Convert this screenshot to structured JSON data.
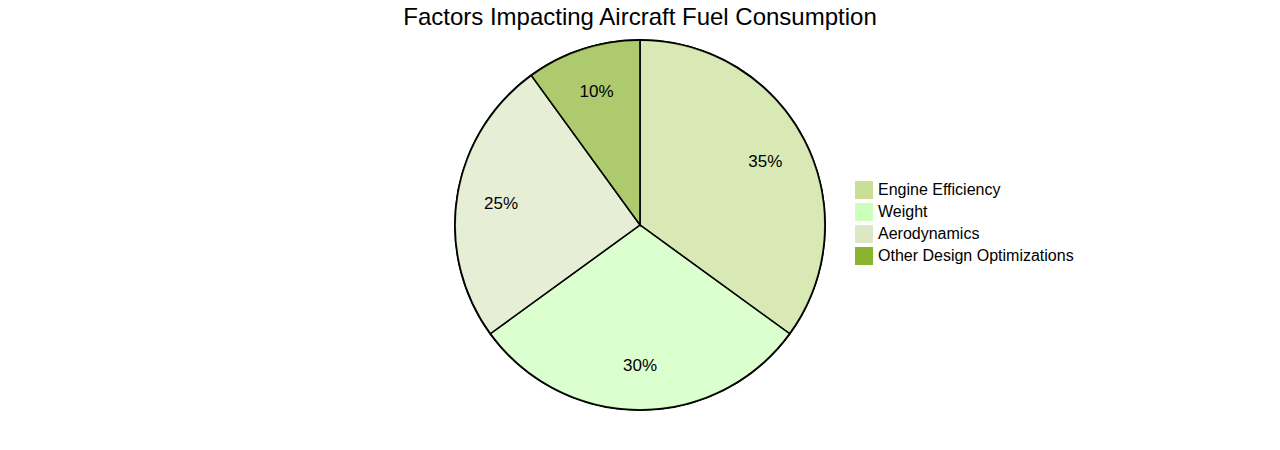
{
  "chart_data": {
    "type": "pie",
    "title": "Factors Impacting Aircraft Fuel Consumption",
    "categories": [
      "Engine Efficiency",
      "Weight",
      "Aerodynamics",
      "Other Design Optimizations"
    ],
    "values": [
      35,
      30,
      25,
      10
    ],
    "value_labels": [
      "35%",
      "30%",
      "25%",
      "10%"
    ],
    "colors": [
      "#c9df96",
      "#ccffbb",
      "#dce8c4",
      "#8ab330"
    ],
    "legend": "right",
    "data_labels": true
  }
}
